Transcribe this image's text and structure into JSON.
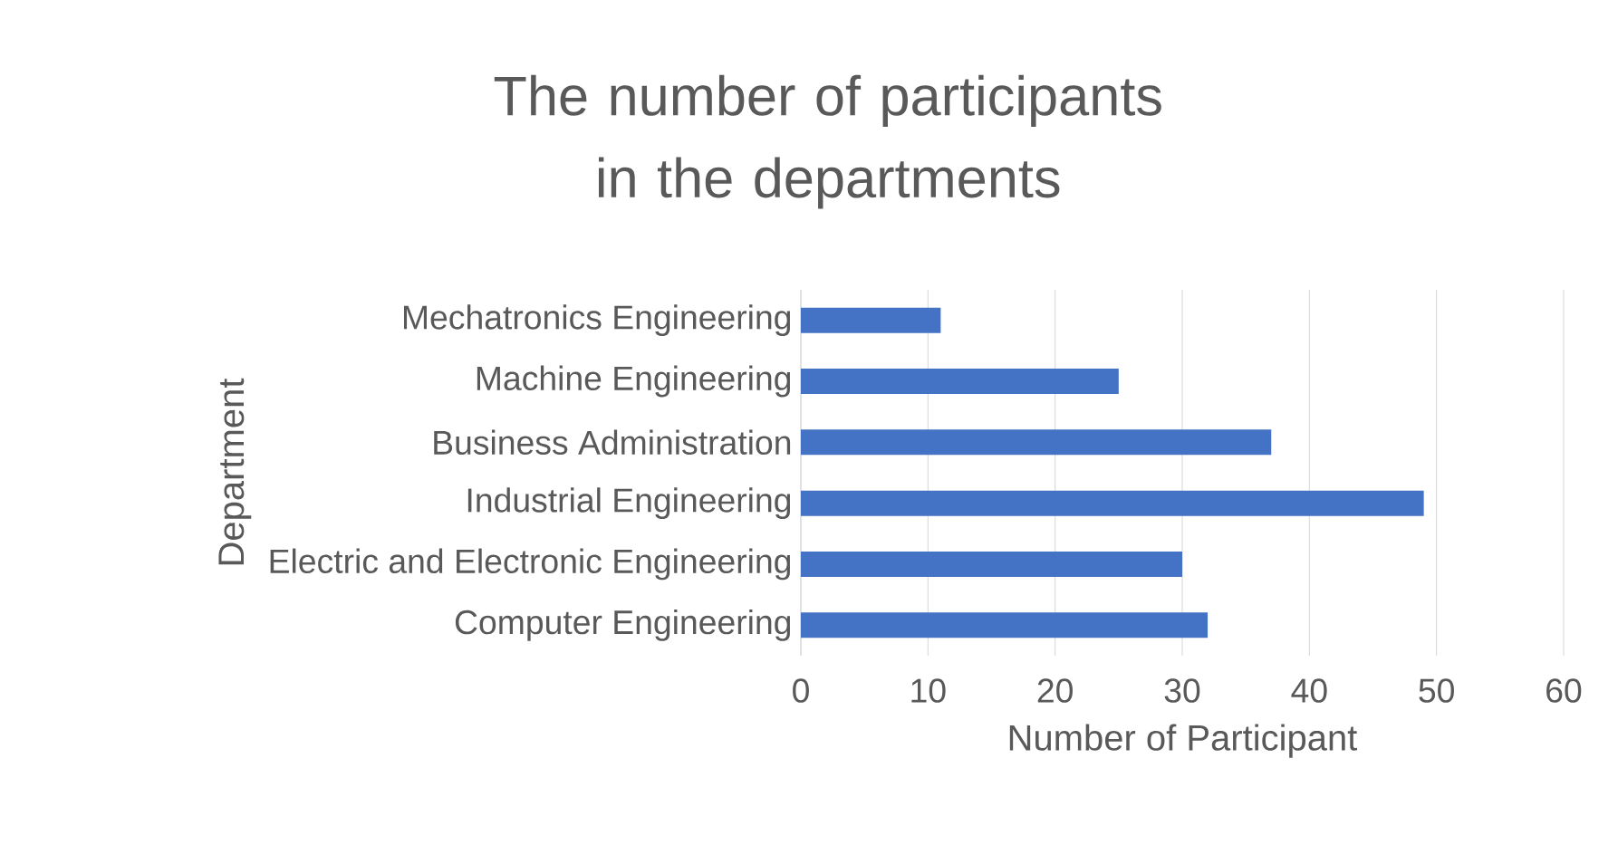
{
  "chart_data": {
    "type": "bar",
    "orientation": "horizontal",
    "title": "The number of participants in the departments",
    "xlabel": "Number of Participant",
    "ylabel": "Department",
    "categories": [
      "Mechatronics Engineering",
      "Machine Engineering",
      "Business Administration",
      "Industrial Engineering",
      "Electric and Electronic Engineering",
      "Computer Engineering"
    ],
    "values": [
      11,
      25,
      37,
      49,
      30,
      32
    ],
    "color": "#4472c4",
    "xlim": [
      0,
      60
    ],
    "xticks": [
      0,
      10,
      20,
      30,
      40,
      50,
      60
    ],
    "grid": "x"
  }
}
